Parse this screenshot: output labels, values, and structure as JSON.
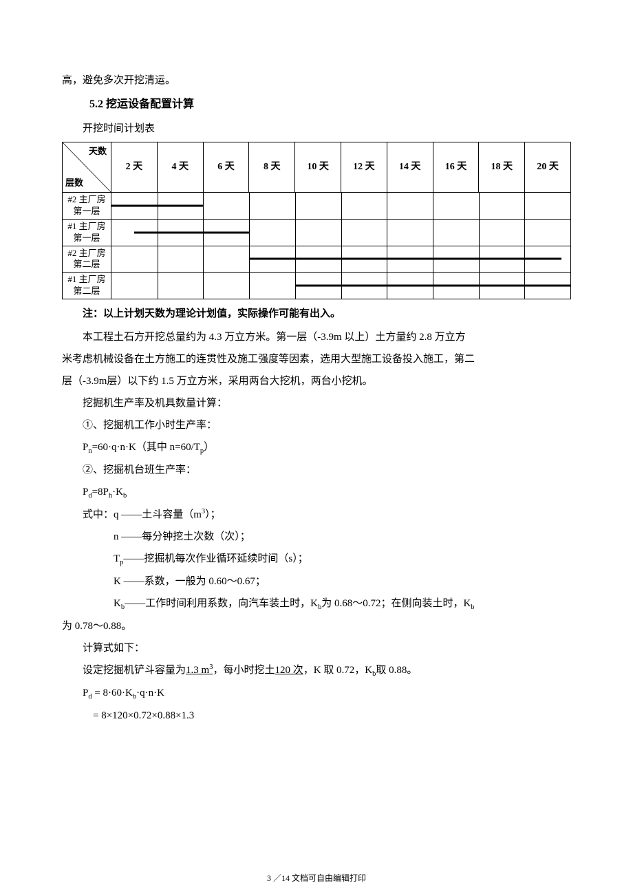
{
  "top_line": "高，避免多次开挖清运。",
  "heading": "5.2 挖运设备配置计算",
  "table_title": "开挖时间计划表",
  "table": {
    "type": "table",
    "background_color": "#ffffff",
    "border_color": "#000000",
    "diag_top": "天数",
    "diag_bottom": "层数",
    "columns": [
      "2 天",
      "4 天",
      "6 天",
      "8 天",
      "10 天",
      "12 天",
      "14 天",
      "16 天",
      "18 天",
      "20 天"
    ],
    "rows": [
      {
        "label": "#2 主厂房第一层",
        "bar_start": 0.0,
        "bar_end": 2.0
      },
      {
        "label": "#1 主厂房第一层",
        "bar_start": 0.5,
        "bar_end": 3.0
      },
      {
        "label": "#2 主厂房第二层",
        "bar_start": 3.0,
        "bar_end": 9.8
      },
      {
        "label": "#1 主厂房第二层",
        "bar_start": 4.0,
        "bar_end": 10.0
      }
    ],
    "bar_color": "#000000",
    "font_size": 14
  },
  "note": "注：以上计划天数为理论计划值，实际操作可能有出入。",
  "body": {
    "p1a": "本工程土石方开挖总量约为 4.3 万立方米。第一层（-3.9m 以上）土方量约 2.8 万立方",
    "p1b": "米考虑机械设备在土方施工的连贯性及施工强度等因素，选用大型施工设备投入施工，第二",
    "p1c": "层（-3.9m层）以下约 1.5 万立方米，采用两台大挖机，两台小挖机。",
    "p2": "挖掘机生产率及机具数量计算：",
    "p3": "①、挖掘机工作小时生产率：",
    "p4": "Pn=60·q·n·K（其中 n=60/Tp）",
    "p5": "②、挖掘机台班生产率：",
    "p6": "Pd=8Ph·Kb",
    "p7": "式中：q ——土斗容量（m3）；",
    "p7b": "n ——每分钟挖土次数（次）；",
    "p7c": "Tp——挖掘机每次作业循环延续时间（s）；",
    "p7d": "K ——系数，一般为 0.60～0.67；",
    "p7e_a": "Kb——工作时间利用系数，向汽车装土时，Kb为 0.68～0.72；在侧向装土时，Kb",
    "p7e_b": "为 0.78～0.88。",
    "p8": "计算式如下：",
    "p9a": "设定挖掘机铲斗容量为",
    "p9u1": "1.3 m",
    "p9b": "，每小时挖土",
    "p9u2": "120 次",
    "p9c": "，K 取 0.72，Kb取 0.88。",
    "p10": "Pd = 8·60·Kb·q·n·K",
    "p11": "  = 8×120×0.72×0.88×1.3"
  },
  "footer": "3 ／14 文档可自由编辑打印"
}
